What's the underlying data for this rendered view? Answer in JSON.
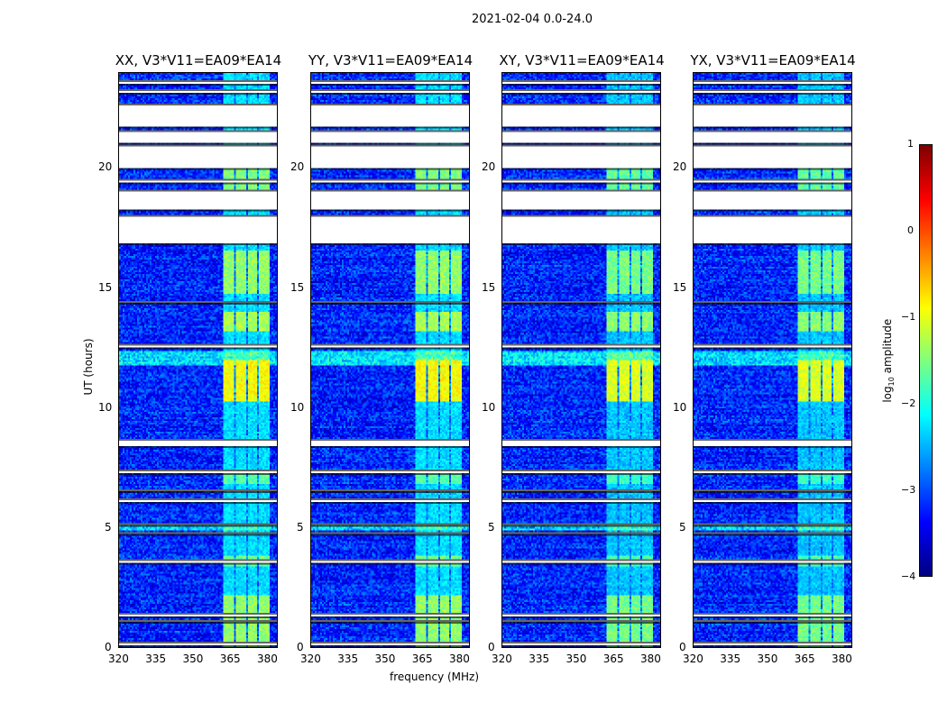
{
  "suptitle": "2021-02-04 0.0-24.0",
  "chart_data": {
    "type": "heatmap",
    "panels": [
      {
        "title": "XX, V3*V11=EA09*EA14"
      },
      {
        "title": "YY, V3*V11=EA09*EA14"
      },
      {
        "title": "XY, V3*V11=EA09*EA14"
      },
      {
        "title": "YX, V3*V11=EA09*EA14"
      }
    ],
    "xlabel": "frequency (MHz)",
    "ylabel": "UT (hours)",
    "xlim": [
      320,
      384
    ],
    "ylim": [
      0,
      24
    ],
    "xticks": [
      "320",
      "335",
      "350",
      "365",
      "380"
    ],
    "yticks": [
      "0",
      "5",
      "10",
      "15",
      "20"
    ],
    "colorbar": {
      "label": "log10 amplitude",
      "label_main": "log",
      "label_sub": "10",
      "label_tail": " amplitude",
      "range": [
        -4,
        1
      ],
      "ticks": [
        "1",
        "0",
        "−1",
        "−2",
        "−3",
        "−4"
      ],
      "colormap": "jet"
    },
    "flagged_hours": [
      [
        23.55,
        23.7
      ],
      [
        23.15,
        23.3
      ],
      [
        21.75,
        22.7
      ],
      [
        21.05,
        21.6
      ],
      [
        20.05,
        21.0
      ],
      [
        19.45,
        19.6
      ],
      [
        18.3,
        19.1
      ],
      [
        16.85,
        18.05
      ],
      [
        14.4,
        14.5
      ],
      [
        12.5,
        12.65
      ],
      [
        8.4,
        8.7
      ],
      [
        7.3,
        7.45
      ],
      [
        6.5,
        6.6
      ],
      [
        6.1,
        6.2
      ],
      [
        5.1,
        5.2
      ],
      [
        4.7,
        4.8
      ],
      [
        3.5,
        3.7
      ],
      [
        1.3,
        1.4
      ],
      [
        1.05,
        1.15
      ],
      [
        0.1,
        0.2
      ]
    ],
    "bright_channels_mhz": [
      [
        362,
        366.5
      ],
      [
        367.5,
        371.5
      ],
      [
        372.5,
        376
      ],
      [
        377,
        381
      ]
    ],
    "bright_hours": [
      [
        0,
        2.2,
        -1.4
      ],
      [
        10.3,
        12.0,
        -0.9
      ],
      [
        13.2,
        14.0,
        -1.3
      ],
      [
        14.8,
        16.6,
        -1.4
      ],
      [
        18.8,
        20.1,
        -1.5
      ],
      [
        6.8,
        7.3,
        -1.7
      ],
      [
        3.4,
        3.8,
        -1.6
      ]
    ],
    "background_level": -3.2
  }
}
